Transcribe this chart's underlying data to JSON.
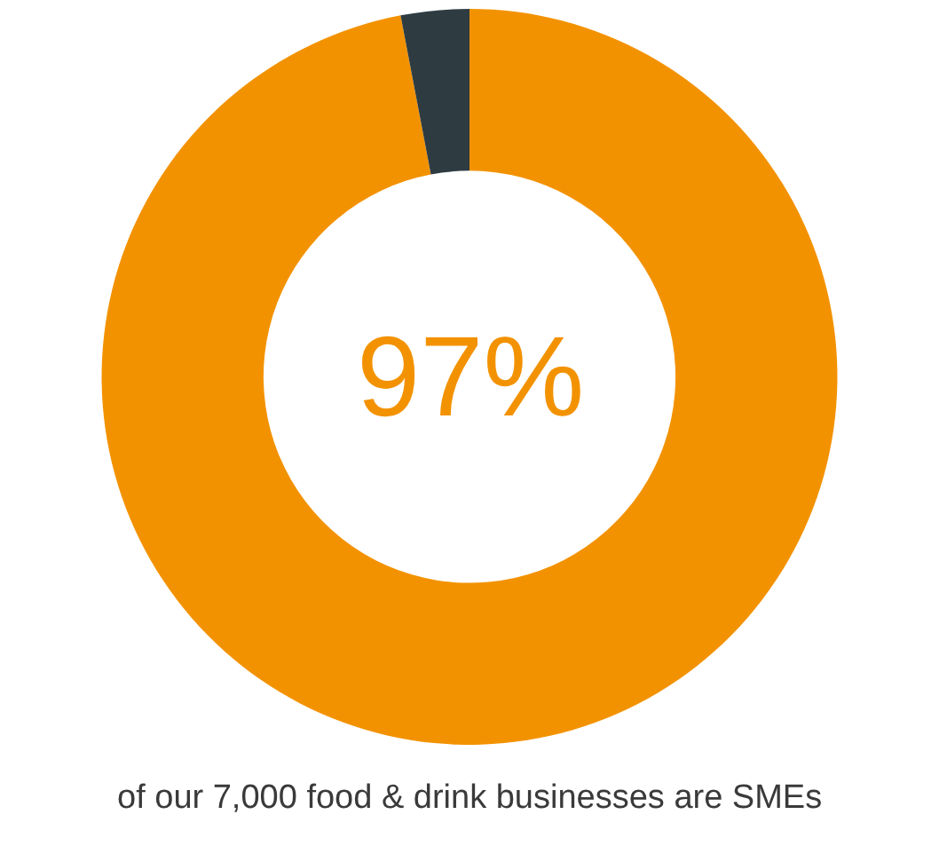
{
  "chart_data": {
    "type": "donut",
    "categories": [
      null,
      null
    ],
    "values": [
      97,
      3
    ],
    "colors": [
      "#f39200",
      "#2e3c42"
    ],
    "value_labels": [
      "97%",
      null
    ],
    "annotations": [
      "of our 7,000 food & drink businesses are SMEs"
    ]
  }
}
